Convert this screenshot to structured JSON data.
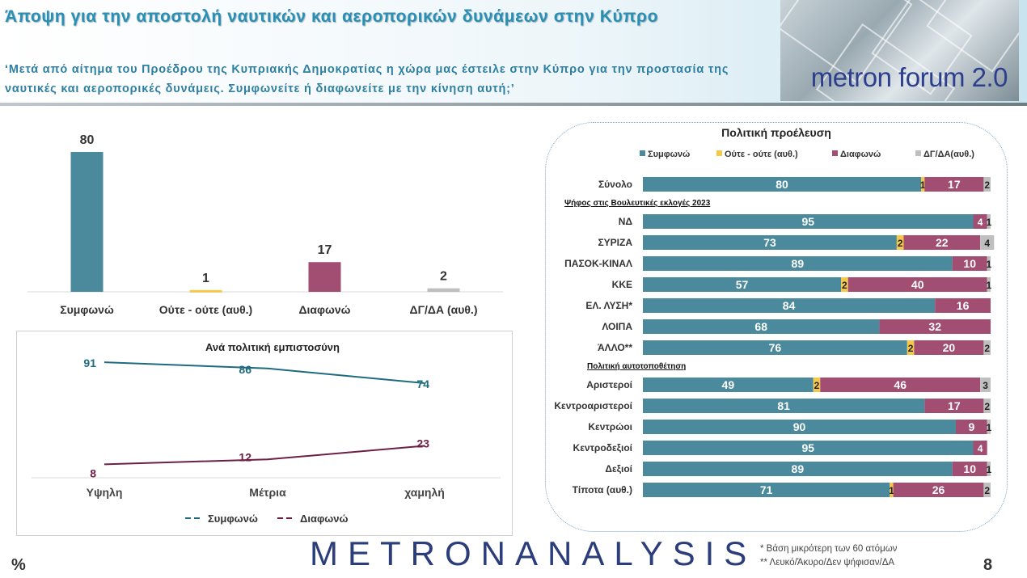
{
  "header": {
    "title": "Άποψη για την αποστολή ναυτικών και αεροπορικών δυνάμεων στην Κύπρο",
    "subtitle": "‘Μετά από αίτημα του Προέδρου της Κυπριακής Δημοκρατίας η χώρα μας έστειλε στην Κύπρο για την προστασία της ναυτικές και αεροπορικές δυνάμεις. Συμφωνείτε ή διαφωνείτε με την κίνηση αυτή;’",
    "logo_text": "metron forum 2.0"
  },
  "footer": {
    "percent_symbol": "%",
    "brand": "METRONANALYSIS",
    "note1": "*  Βάση μικρότερη των 60 ατόμων",
    "note2": "** Λευκό/Άκυρο/Δεν ψήφισαν/ΔΑ",
    "page_number": "8"
  },
  "colors": {
    "agree": "#4a8a9c",
    "neutral": "#f5c84a",
    "disagree": "#a24d72",
    "dk": "#bfbfbf",
    "line_agree": "#1e6b7f",
    "line_disagree": "#6e1f45"
  },
  "chart_data": [
    {
      "type": "bar",
      "title": "",
      "categories": [
        "Συμφωνώ",
        "Ούτε - ούτε (αυθ.)",
        "Διαφωνώ",
        "ΔΓ/ΔΑ (αυθ.)"
      ],
      "values": [
        80,
        1,
        17,
        2
      ],
      "ylim": [
        0,
        80
      ]
    },
    {
      "type": "line",
      "title": "Ανά πολιτική εμπιστοσύνη",
      "categories": [
        "Υψηλη",
        "Μέτρια",
        "χαμηλή"
      ],
      "series": [
        {
          "name": "Συμφωνώ",
          "values": [
            91,
            86,
            74
          ]
        },
        {
          "name": "Διαφωνώ",
          "values": [
            8,
            12,
            23
          ]
        }
      ],
      "legend": [
        "Συμφωνώ",
        "Διαφωνώ"
      ]
    },
    {
      "type": "bar",
      "orientation": "horizontal-stacked",
      "title": "Πολιτική προέλευση",
      "legend": [
        "Συμφωνώ",
        "Ούτε - ούτε (αυθ.)",
        "Διαφωνώ",
        "ΔΓ/ΔΑ(αυθ.)"
      ],
      "groups": [
        {
          "heading": "",
          "rows": [
            {
              "label": "Σύνολο",
              "values": [
                80,
                1,
                17,
                2
              ]
            }
          ]
        },
        {
          "heading": "Ψήφος στις Βουλευτικές εκλογές 2023",
          "rows": [
            {
              "label": "ΝΔ",
              "values": [
                95,
                0,
                4,
                1
              ]
            },
            {
              "label": "ΣΥΡΙΖΑ",
              "values": [
                73,
                2,
                22,
                4
              ]
            },
            {
              "label": "ΠΑΣΟΚ-ΚΙΝΑΛ",
              "values": [
                89,
                0,
                10,
                1
              ]
            },
            {
              "label": "ΚΚΕ",
              "values": [
                57,
                2,
                40,
                1
              ]
            },
            {
              "label": "ΕΛ. ΛΥΣΗ*",
              "values": [
                84,
                0,
                16,
                0
              ]
            },
            {
              "label": "ΛΟΙΠΑ",
              "values": [
                68,
                0,
                32,
                0
              ]
            },
            {
              "label": "ΆΛΛΟ**",
              "values": [
                76,
                2,
                20,
                2
              ]
            }
          ]
        },
        {
          "heading": "Πολιτική αυτοτοποθέτηση",
          "rows": [
            {
              "label": "Αριστεροί",
              "values": [
                49,
                2,
                46,
                3
              ]
            },
            {
              "label": "Κεντροαριστεροί",
              "values": [
                81,
                0,
                17,
                2
              ]
            },
            {
              "label": "Κεντρώοι",
              "values": [
                90,
                0,
                9,
                1
              ]
            },
            {
              "label": "Κεντροδεξιοί",
              "values": [
                95,
                0,
                4,
                0
              ]
            },
            {
              "label": "Δεξιοί",
              "values": [
                89,
                0,
                10,
                1
              ]
            },
            {
              "label": "Τίποτα (αυθ.)",
              "values": [
                71,
                1,
                26,
                2
              ]
            }
          ]
        }
      ]
    }
  ]
}
